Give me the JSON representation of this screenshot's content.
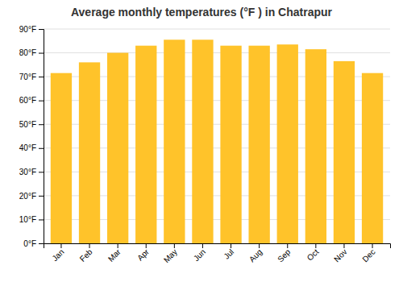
{
  "chart_data": {
    "type": "bar",
    "title": "Average monthly temperatures (°F ) in Chatrapur",
    "categories": [
      "Jan",
      "Feb",
      "Mar",
      "Apr",
      "May",
      "Jun",
      "Jul",
      "Aug",
      "Sep",
      "Oct",
      "Nov",
      "Dec"
    ],
    "values": [
      71.5,
      76.0,
      80.0,
      83.0,
      85.5,
      85.5,
      83.0,
      83.0,
      83.5,
      81.5,
      76.5,
      71.5
    ],
    "color": "#FFC32A",
    "ylim": [
      0,
      90
    ],
    "yticks": [
      {
        "value": 0,
        "label": "0°F"
      },
      {
        "value": 10,
        "label": "10°F"
      },
      {
        "value": 20,
        "label": "20°F"
      },
      {
        "value": 30,
        "label": "30°F"
      },
      {
        "value": 40,
        "label": "40°F"
      },
      {
        "value": 50,
        "label": "50°F"
      },
      {
        "value": 60,
        "label": "60°F"
      },
      {
        "value": 70,
        "label": "70°F"
      },
      {
        "value": 80,
        "label": "80°F"
      },
      {
        "value": 90,
        "label": "90°F"
      }
    ],
    "grid": true
  }
}
